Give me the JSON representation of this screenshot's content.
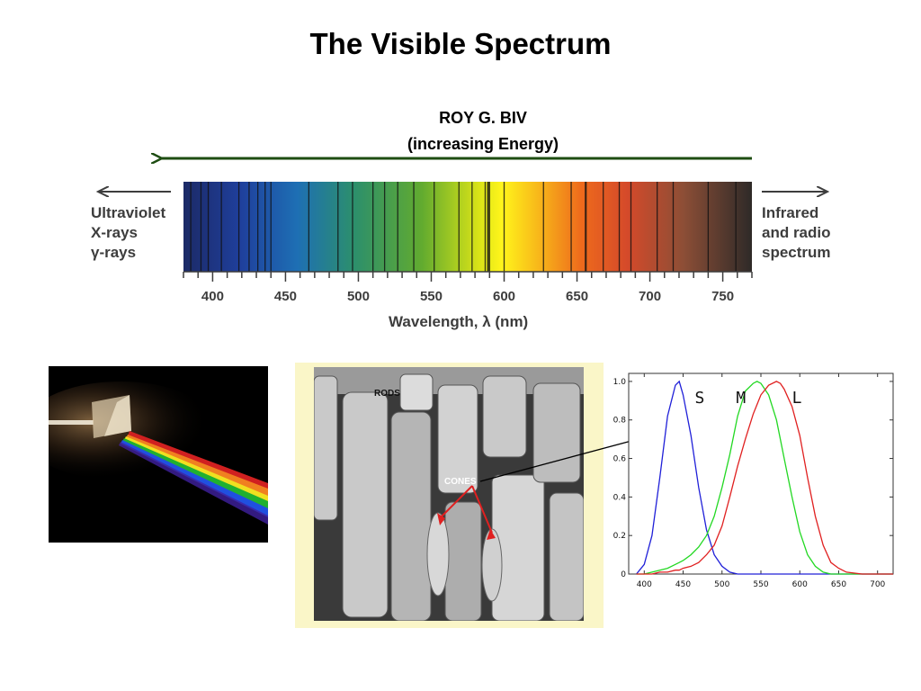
{
  "slide": {
    "title": "The Visible Spectrum",
    "mnemonic_line1": "ROY  G.  BIV",
    "mnemonic_line2": "(increasing Energy)"
  },
  "spectrum": {
    "left_labels": [
      "Ultraviolet",
      "X-rays",
      "γ-rays"
    ],
    "right_labels": [
      "Infrared",
      "and radio",
      "spectrum"
    ],
    "axis_label": "Wavelength, λ (nm)",
    "ticks": [
      "400",
      "450",
      "500",
      "550",
      "600",
      "650",
      "700",
      "750"
    ],
    "range_nm": [
      380,
      770
    ],
    "colors": {
      "energy_arrow": "#1e4d12",
      "side_arrows": "#3d3d3d"
    }
  },
  "photos": {
    "prism": "prism-light-dispersion-photo",
    "retina_rods_label": "RODS",
    "retina_cones_label": "CONES"
  },
  "chart_data": {
    "type": "line",
    "title": "",
    "xlabel": "",
    "ylabel": "",
    "xlim": [
      380,
      720
    ],
    "ylim": [
      0,
      1.0
    ],
    "x_ticks": [
      400,
      450,
      500,
      550,
      600,
      650,
      700
    ],
    "y_ticks": [
      0,
      0.2,
      0.4,
      0.6,
      0.8,
      1.0
    ],
    "x": [
      390,
      400,
      410,
      420,
      430,
      440,
      445,
      450,
      460,
      470,
      480,
      490,
      500,
      510,
      520,
      530,
      540,
      545,
      550,
      560,
      570,
      575,
      580,
      590,
      600,
      610,
      620,
      630,
      640,
      650,
      660,
      680,
      700,
      720
    ],
    "series": [
      {
        "name": "S",
        "color": "#2020d8",
        "values": [
          0.0,
          0.05,
          0.2,
          0.5,
          0.82,
          0.98,
          1.0,
          0.93,
          0.72,
          0.45,
          0.23,
          0.1,
          0.04,
          0.01,
          0.0,
          0.0,
          0.0,
          0.0,
          0.0,
          0.0,
          0.0,
          0.0,
          0.0,
          0.0,
          0.0,
          0.0,
          0.0,
          0.0,
          0.0,
          0.0,
          0.0,
          0.0,
          0.0,
          0.0
        ]
      },
      {
        "name": "M",
        "color": "#22d822",
        "values": [
          0.0,
          0.0,
          0.01,
          0.02,
          0.03,
          0.05,
          0.06,
          0.07,
          0.1,
          0.14,
          0.2,
          0.3,
          0.45,
          0.62,
          0.82,
          0.95,
          0.99,
          1.0,
          0.99,
          0.93,
          0.8,
          0.7,
          0.6,
          0.4,
          0.22,
          0.1,
          0.04,
          0.01,
          0.0,
          0.0,
          0.0,
          0.0,
          0.0,
          0.0
        ]
      },
      {
        "name": "L",
        "color": "#e02020",
        "values": [
          0.0,
          0.0,
          0.0,
          0.01,
          0.01,
          0.02,
          0.02,
          0.03,
          0.04,
          0.06,
          0.1,
          0.15,
          0.25,
          0.4,
          0.56,
          0.7,
          0.83,
          0.88,
          0.93,
          0.98,
          1.0,
          0.99,
          0.96,
          0.87,
          0.72,
          0.5,
          0.3,
          0.15,
          0.06,
          0.03,
          0.01,
          0.0,
          0.0,
          0.0
        ]
      }
    ],
    "legend": "inline-top"
  }
}
